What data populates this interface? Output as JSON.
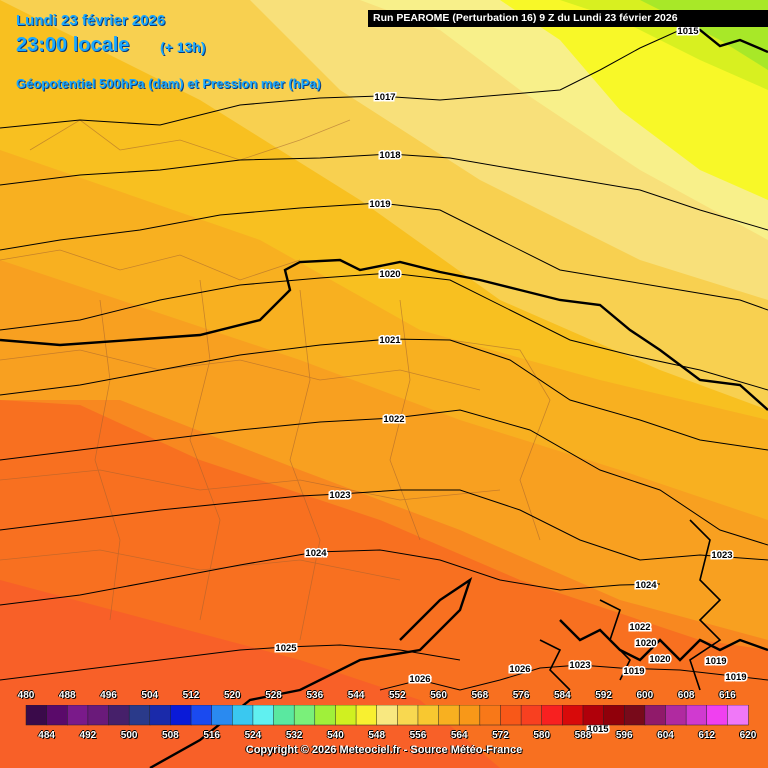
{
  "header": {
    "date": "Lundi 23 février 2026",
    "time": "23:00 locale",
    "lead": "(+ 13h)",
    "parameter": "Géopotentiel 500hPa (dam) et Pression mer (hPa)",
    "run_info": "Run PEAROME (Perturbation 16) 9 Z du Lundi 23 février 2026"
  },
  "isobars": [
    "1015",
    "1017",
    "1018",
    "1019",
    "1020",
    "1021",
    "1022",
    "1023",
    "1024",
    "1025",
    "1026",
    "1026",
    "1023",
    "1024",
    "1022",
    "1020",
    "1019",
    "1019",
    "1019",
    "1015",
    "1020",
    "1023"
  ],
  "legend": {
    "top_ticks": [
      "480",
      "488",
      "496",
      "504",
      "512",
      "520",
      "528",
      "536",
      "544",
      "552",
      "560",
      "568",
      "576",
      "584",
      "592",
      "600",
      "608",
      "616"
    ],
    "bottom_ticks": [
      "484",
      "492",
      "500",
      "508",
      "516",
      "524",
      "532",
      "540",
      "548",
      "556",
      "564",
      "572",
      "580",
      "588",
      "596",
      "604",
      "612",
      "620"
    ],
    "colors": [
      "#3a0a4a",
      "#5a0a6a",
      "#7a1a8a",
      "#6a1a7a",
      "#46206a",
      "#2a3a8a",
      "#1a2aaa",
      "#0a1ad8",
      "#1a4af0",
      "#2a8af0",
      "#3ac8f0",
      "#60f0f0",
      "#5ae8a0",
      "#7af07a",
      "#a0f03a",
      "#d0f020",
      "#f8f030",
      "#f8e880",
      "#f8d850",
      "#f8c830",
      "#f8b020",
      "#f89818",
      "#f87818",
      "#f85818",
      "#f84020",
      "#f82020",
      "#d80a0a",
      "#b0000a",
      "#90000a",
      "#780a1a",
      "#901a6a",
      "#b02aa0",
      "#d03ad0",
      "#f040f0",
      "#f078f8"
    ],
    "copyright": "Copyright © 2026 Meteociel.fr - Source Météo-France"
  }
}
